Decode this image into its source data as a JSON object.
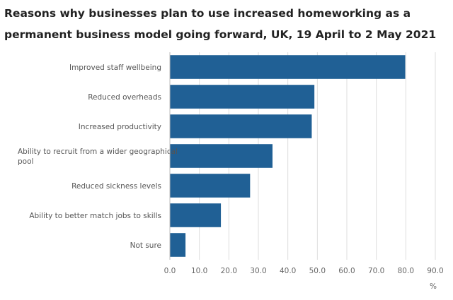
{
  "chart_data": {
    "type": "bar",
    "orientation": "horizontal",
    "title": "Reasons why businesses plan to use increased homeworking as a permanent business model going forward, UK, 19 April to 2 May 2021",
    "categories": [
      "Improved staff wellbeing",
      "Reduced overheads",
      "Increased productivity",
      "Ability to recruit from a wider geographical pool",
      "Reduced sickness levels",
      "Ability to better match jobs to skills",
      "Not sure"
    ],
    "category_lines": [
      [
        "Improved staff wellbeing"
      ],
      [
        "Reduced overheads"
      ],
      [
        "Increased productivity"
      ],
      [
        "Ability to recruit from a wider geographical",
        "pool"
      ],
      [
        "Reduced sickness levels"
      ],
      [
        "Ability to better match jobs to skills"
      ],
      [
        "Not sure"
      ]
    ],
    "values": [
      79.8,
      49.0,
      48.1,
      34.8,
      27.2,
      17.3,
      5.3
    ],
    "xlabel": "%",
    "ylabel": "",
    "xlim": [
      0,
      90
    ],
    "xticks": [
      "0.0",
      "10.0",
      "20.0",
      "30.0",
      "40.0",
      "50.0",
      "60.0",
      "70.0",
      "80.0",
      "90.0"
    ],
    "grid": "vertical",
    "bar_color": "#206095"
  }
}
